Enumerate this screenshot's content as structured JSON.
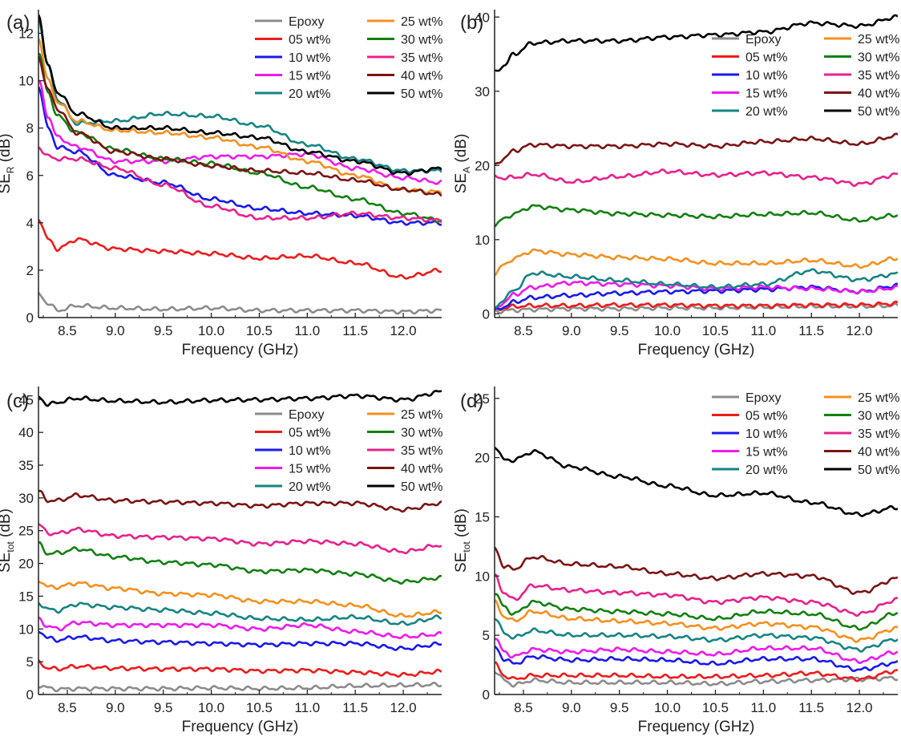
{
  "colors": {
    "Epoxy": "#8c8c8c",
    "05 wt%": "#ee1c1c",
    "10 wt%": "#1a1aee",
    "15 wt%": "#ee1aee",
    "20 wt%": "#168484",
    "25 wt%": "#f5901e",
    "30 wt%": "#128012",
    "35 wt%": "#e8218c",
    "40 wt%": "#7b1414",
    "50 wt%": "#000000"
  },
  "legend_labels": [
    "Epoxy",
    "05 wt%",
    "10 wt%",
    "15 wt%",
    "20 wt%",
    "25 wt%",
    "30 wt%",
    "35 wt%",
    "40 wt%",
    "50 wt%"
  ],
  "chart_data": [
    {
      "type": "line",
      "panel": "(a)",
      "xlabel": "Frequency (GHz)",
      "ylabel_main": "SE",
      "ylabel_sub": "R",
      "ylabel_unit": " (dB)",
      "xlim": [
        8.2,
        12.4
      ],
      "ylim": [
        0,
        13
      ],
      "xticks": [
        "8.5",
        "9.0",
        "9.5",
        "10.0",
        "10.5",
        "11.0",
        "11.5",
        "12.0"
      ],
      "yticks": [
        "0",
        "2",
        "4",
        "6",
        "8",
        "10",
        "12"
      ],
      "x": [
        8.2,
        8.3,
        8.4,
        8.6,
        9.0,
        9.5,
        10.0,
        10.5,
        11.0,
        11.5,
        12.0,
        12.4
      ],
      "legend_position": "top-right",
      "series": [
        {
          "name": "Epoxy",
          "values": [
            1.0,
            0.6,
            0.3,
            0.5,
            0.4,
            0.35,
            0.4,
            0.3,
            0.3,
            0.3,
            0.25,
            0.3
          ]
        },
        {
          "name": "05 wt%",
          "values": [
            4.2,
            3.3,
            2.9,
            3.3,
            2.9,
            2.8,
            2.7,
            2.5,
            2.6,
            2.3,
            1.7,
            2.0
          ]
        },
        {
          "name": "10 wt%",
          "values": [
            9.8,
            8.0,
            7.2,
            7.0,
            6.0,
            5.7,
            5.0,
            4.6,
            4.4,
            4.3,
            4.0,
            4.0
          ]
        },
        {
          "name": "15 wt%",
          "values": [
            10.0,
            8.5,
            7.6,
            7.2,
            6.6,
            6.6,
            6.8,
            6.8,
            6.9,
            6.3,
            5.9,
            5.7
          ]
        },
        {
          "name": "20 wt%",
          "values": [
            12.6,
            10.6,
            9.2,
            8.2,
            8.3,
            8.6,
            8.5,
            8.1,
            7.3,
            6.7,
            6.2,
            6.2
          ]
        },
        {
          "name": "25 wt%",
          "values": [
            11.8,
            10.0,
            9.1,
            8.3,
            7.9,
            7.8,
            7.6,
            7.2,
            6.6,
            6.0,
            5.4,
            5.3
          ]
        },
        {
          "name": "30 wt%",
          "values": [
            11.2,
            9.5,
            8.5,
            7.8,
            7.1,
            6.7,
            6.5,
            6.1,
            5.5,
            5.0,
            4.4,
            4.1
          ]
        },
        {
          "name": "35 wt%",
          "values": [
            7.2,
            6.8,
            6.7,
            6.7,
            6.3,
            5.6,
            4.7,
            4.2,
            4.2,
            4.4,
            4.2,
            4.1
          ]
        },
        {
          "name": "40 wt%",
          "values": [
            11.0,
            9.6,
            8.8,
            7.8,
            7.0,
            6.7,
            6.4,
            6.2,
            6.1,
            5.8,
            5.4,
            5.2
          ]
        },
        {
          "name": "50 wt%",
          "values": [
            12.8,
            10.6,
            9.5,
            8.6,
            8.0,
            8.0,
            7.8,
            7.6,
            7.0,
            6.6,
            6.1,
            6.3
          ]
        }
      ]
    },
    {
      "type": "line",
      "panel": "(b)",
      "xlabel": "Frequency (GHz)",
      "ylabel_main": "SE",
      "ylabel_sub": "A",
      "ylabel_unit": " (dB)",
      "xlim": [
        8.2,
        12.4
      ],
      "ylim": [
        -0.5,
        41
      ],
      "xticks": [
        "8.5",
        "9.0",
        "9.5",
        "10.0",
        "10.5",
        "11.0",
        "11.5",
        "12.0"
      ],
      "yticks": [
        "0",
        "10",
        "20",
        "30",
        "40"
      ],
      "x": [
        8.2,
        8.3,
        8.4,
        8.6,
        9.0,
        9.5,
        10.0,
        10.5,
        11.0,
        11.5,
        12.0,
        12.4
      ],
      "legend_position": "top-right",
      "series": [
        {
          "name": "Epoxy",
          "values": [
            0.3,
            0.4,
            0.5,
            0.6,
            0.7,
            0.7,
            0.8,
            0.8,
            0.9,
            1.0,
            1.0,
            1.1
          ]
        },
        {
          "name": "05 wt%",
          "values": [
            0.5,
            0.8,
            1.0,
            1.1,
            1.1,
            1.2,
            1.2,
            1.1,
            1.1,
            1.2,
            1.2,
            1.4
          ]
        },
        {
          "name": "10 wt%",
          "values": [
            0.4,
            1.0,
            1.6,
            2.2,
            2.5,
            2.8,
            3.0,
            3.1,
            3.3,
            3.6,
            3.0,
            3.8
          ]
        },
        {
          "name": "15 wt%",
          "values": [
            0.6,
            1.6,
            2.6,
            3.6,
            4.2,
            4.0,
            3.8,
            3.4,
            3.6,
            3.4,
            3.0,
            3.5
          ]
        },
        {
          "name": "20 wt%",
          "values": [
            0.8,
            2.0,
            3.2,
            5.5,
            5.0,
            4.5,
            4.0,
            3.6,
            4.0,
            5.8,
            4.6,
            5.4
          ]
        },
        {
          "name": "25 wt%",
          "values": [
            5.5,
            6.6,
            7.5,
            8.5,
            8.0,
            7.6,
            7.4,
            6.8,
            6.8,
            7.2,
            6.4,
            7.5
          ]
        },
        {
          "name": "30 wt%",
          "values": [
            12.0,
            12.8,
            13.5,
            14.5,
            14.0,
            13.5,
            13.3,
            13.1,
            13.4,
            13.6,
            12.6,
            13.3
          ]
        },
        {
          "name": "35 wt%",
          "values": [
            18.5,
            18.3,
            18.4,
            18.8,
            17.8,
            18.5,
            19.2,
            18.7,
            19.0,
            18.4,
            17.5,
            18.8
          ]
        },
        {
          "name": "40 wt%",
          "values": [
            20.0,
            21.0,
            22.0,
            22.8,
            22.6,
            22.6,
            22.9,
            22.6,
            23.2,
            23.6,
            22.9,
            24.0
          ]
        },
        {
          "name": "50 wt%",
          "values": [
            32.5,
            33.5,
            35.0,
            36.5,
            36.8,
            36.8,
            37.3,
            37.6,
            38.0,
            39.2,
            38.8,
            40.0
          ]
        }
      ]
    },
    {
      "type": "line",
      "panel": "(c)",
      "xlabel": "Frequency (GHz)",
      "ylabel_main": "SE",
      "ylabel_sub": "tot",
      "ylabel_unit": " (dB)",
      "xlim": [
        8.2,
        12.4
      ],
      "ylim": [
        0,
        47
      ],
      "xticks": [
        "8.5",
        "9.0",
        "9.5",
        "10.0",
        "10.5",
        "11.0",
        "11.5",
        "12.0"
      ],
      "yticks": [
        "0",
        "5",
        "10",
        "15",
        "20",
        "25",
        "30",
        "35",
        "40",
        "45"
      ],
      "x": [
        8.2,
        8.3,
        8.4,
        8.6,
        9.0,
        9.5,
        10.0,
        10.5,
        11.0,
        11.5,
        12.0,
        12.4
      ],
      "legend_position": "top-right",
      "series": [
        {
          "name": "Epoxy",
          "values": [
            1.4,
            1.0,
            0.8,
            0.9,
            0.9,
            0.9,
            1.0,
            0.9,
            1.0,
            1.3,
            1.4,
            1.5
          ]
        },
        {
          "name": "05 wt%",
          "values": [
            5.0,
            4.0,
            3.9,
            4.3,
            4.0,
            3.9,
            3.9,
            3.6,
            3.7,
            3.4,
            3.0,
            3.5
          ]
        },
        {
          "name": "10 wt%",
          "values": [
            9.8,
            8.6,
            8.3,
            8.8,
            8.2,
            8.0,
            7.8,
            7.6,
            7.8,
            7.8,
            7.0,
            7.7
          ]
        },
        {
          "name": "15 wt%",
          "values": [
            11.5,
            10.4,
            10.0,
            11.0,
            10.6,
            10.6,
            10.6,
            10.0,
            10.6,
            9.6,
            8.8,
            9.2
          ]
        },
        {
          "name": "20 wt%",
          "values": [
            14.0,
            13.0,
            12.8,
            13.8,
            13.3,
            12.9,
            12.4,
            11.6,
            11.4,
            11.8,
            10.8,
            11.8
          ]
        },
        {
          "name": "25 wt%",
          "values": [
            17.5,
            16.4,
            16.4,
            17.0,
            16.2,
            15.4,
            15.2,
            14.2,
            14.2,
            13.6,
            12.0,
            12.6
          ]
        },
        {
          "name": "30 wt%",
          "values": [
            23.0,
            21.5,
            21.6,
            22.2,
            21.0,
            20.2,
            19.8,
            18.8,
            19.0,
            18.4,
            17.2,
            17.8
          ]
        },
        {
          "name": "35 wt%",
          "values": [
            26.0,
            24.6,
            24.6,
            25.2,
            24.2,
            24.0,
            23.8,
            23.0,
            23.4,
            23.0,
            21.8,
            22.8
          ]
        },
        {
          "name": "40 wt%",
          "values": [
            31.0,
            29.6,
            29.6,
            30.4,
            29.6,
            29.4,
            29.2,
            28.8,
            29.2,
            29.2,
            28.2,
            29.2
          ]
        },
        {
          "name": "50 wt%",
          "values": [
            45.5,
            44.2,
            44.6,
            45.2,
            44.8,
            44.6,
            44.9,
            45.0,
            45.2,
            45.6,
            45.0,
            46.2
          ]
        }
      ]
    },
    {
      "type": "line",
      "panel": "(d)",
      "xlabel": "Frequency (GHz)",
      "ylabel_main": "SE",
      "ylabel_sub": "tot",
      "ylabel_unit": " (dB)",
      "xlim": [
        8.2,
        12.4
      ],
      "ylim": [
        0,
        26
      ],
      "xticks": [
        "8.5",
        "9.0",
        "9.5",
        "10.0",
        "10.5",
        "11.0",
        "11.5",
        "12.0"
      ],
      "yticks": [
        "0",
        "5",
        "10",
        "15",
        "20",
        "25"
      ],
      "x": [
        8.2,
        8.3,
        8.4,
        8.6,
        9.0,
        9.5,
        10.0,
        10.5,
        11.0,
        11.5,
        12.0,
        12.4
      ],
      "legend_position": "top-right",
      "series": [
        {
          "name": "Epoxy",
          "values": [
            2.0,
            1.2,
            0.8,
            1.2,
            1.0,
            1.0,
            1.0,
            0.9,
            1.1,
            1.2,
            1.3,
            1.4
          ]
        },
        {
          "name": "05 wt%",
          "values": [
            2.6,
            1.6,
            1.3,
            1.6,
            1.6,
            1.6,
            1.5,
            1.5,
            1.6,
            1.8,
            1.3,
            2.0
          ]
        },
        {
          "name": "10 wt%",
          "values": [
            4.0,
            3.0,
            2.6,
            3.2,
            2.9,
            3.0,
            2.9,
            2.6,
            3.0,
            3.0,
            2.1,
            2.7
          ]
        },
        {
          "name": "15 wt%",
          "values": [
            4.8,
            3.6,
            3.2,
            3.8,
            3.6,
            3.8,
            3.6,
            3.4,
            3.9,
            3.9,
            2.8,
            3.6
          ]
        },
        {
          "name": "20 wt%",
          "values": [
            6.5,
            5.2,
            4.8,
            5.4,
            5.0,
            5.0,
            4.9,
            4.6,
            5.0,
            4.8,
            3.8,
            4.7
          ]
        },
        {
          "name": "25 wt%",
          "values": [
            7.8,
            6.6,
            6.2,
            7.0,
            6.4,
            6.2,
            6.0,
            5.6,
            6.0,
            5.7,
            4.6,
            5.6
          ]
        },
        {
          "name": "30 wt%",
          "values": [
            8.6,
            7.4,
            6.8,
            7.8,
            7.2,
            7.0,
            6.8,
            6.4,
            7.0,
            6.8,
            5.6,
            6.9
          ]
        },
        {
          "name": "35 wt%",
          "values": [
            10.0,
            8.6,
            8.0,
            9.2,
            8.8,
            8.6,
            8.4,
            7.8,
            8.2,
            7.8,
            6.8,
            8.0
          ]
        },
        {
          "name": "40 wt%",
          "values": [
            12.4,
            10.8,
            10.6,
            11.6,
            11.0,
            10.8,
            10.2,
            9.8,
            10.2,
            10.0,
            8.6,
            9.8
          ]
        },
        {
          "name": "50 wt%",
          "values": [
            21.0,
            19.8,
            19.8,
            20.5,
            19.2,
            18.4,
            17.6,
            16.8,
            17.0,
            16.2,
            15.2,
            15.8
          ]
        }
      ]
    }
  ]
}
